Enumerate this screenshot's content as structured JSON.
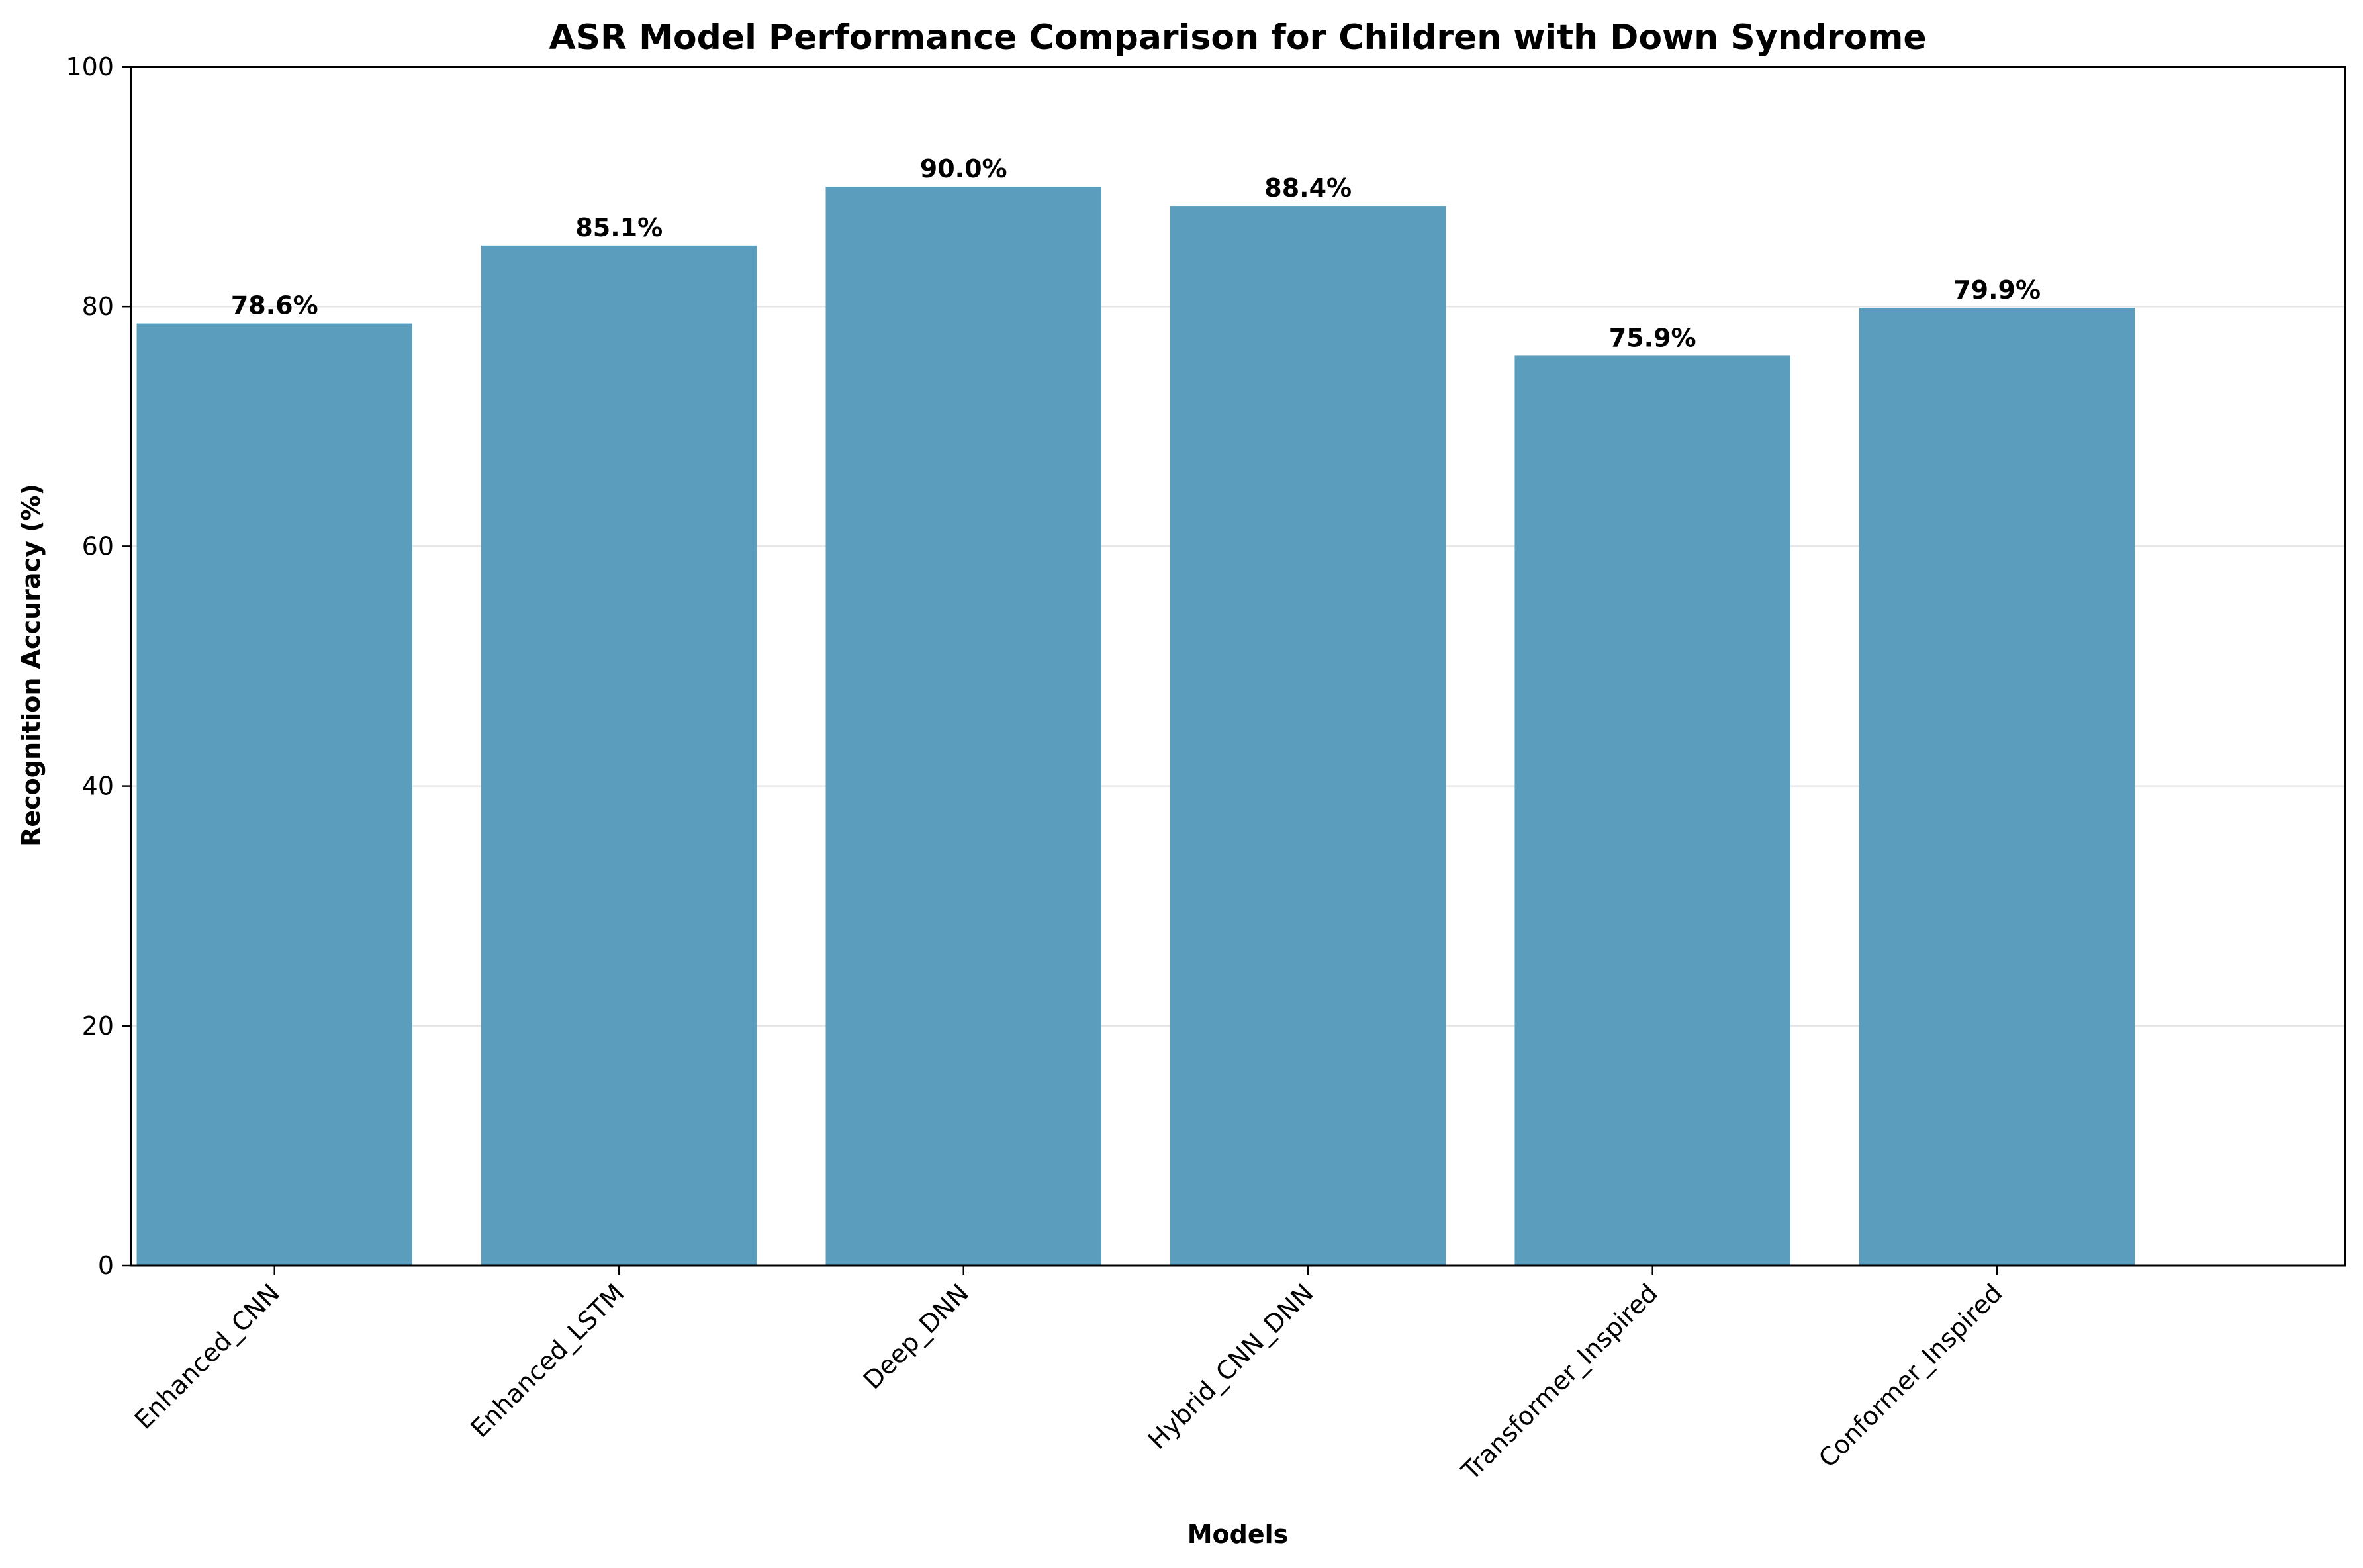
{
  "chart_data": {
    "type": "bar",
    "title": "ASR Model Performance Comparison for Children with Down Syndrome",
    "xlabel": "Models",
    "ylabel": "Recognition Accuracy (%)",
    "categories": [
      "Enhanced_CNN",
      "Enhanced_LSTM",
      "Deep_DNN",
      "Hybrid_CNN_DNN",
      "Transformer_Inspired",
      "Conformer_Inspired"
    ],
    "values": [
      78.6,
      85.1,
      90.0,
      88.4,
      75.9,
      79.9
    ],
    "value_labels": [
      "78.6%",
      "85.1%",
      "90.0%",
      "88.4%",
      "75.9%",
      "79.9%"
    ],
    "ylim": [
      0,
      100
    ],
    "yticks": [
      0,
      20,
      40,
      60,
      80,
      100
    ],
    "grid": "y",
    "legend": "none",
    "colors": {
      "bar": "#5a9dbc",
      "grid": "#e6e6e6",
      "axis": "#000000"
    }
  }
}
